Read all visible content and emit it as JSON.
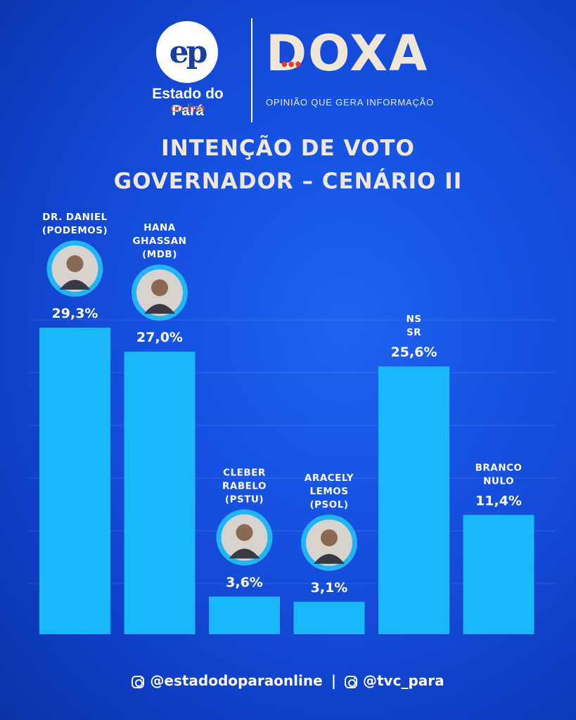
{
  "header": {
    "ep_logo_text": "ep",
    "ep_name": "Estado do Pará",
    "ep_sub": "on-line",
    "doxa_name": "DOXA",
    "doxa_tagline": "OPINIÃO QUE GERA INFORMAÇÃO"
  },
  "title_line1": "INTENÇÃO DE VOTO",
  "title_line2": "GOVERNADOR – CENÁRIO II",
  "colors": {
    "bar": "#18b8fb",
    "title": "#eee8d8",
    "photo_ring": "#1fb5f7"
  },
  "chart_data": {
    "type": "bar",
    "title": "INTENÇÃO DE VOTO GOVERNADOR – CENÁRIO II",
    "categories": [
      [
        "DR. DANIEL",
        "(PODEMOS)"
      ],
      [
        "HANA",
        "GHASSAN",
        "(MDB)"
      ],
      [
        "CLEBER",
        "RABELO",
        "(PSTU)"
      ],
      [
        "ARACELY",
        "LEMOS",
        "(PSOL)"
      ],
      [
        "NS",
        "SR"
      ],
      [
        "BRANCO",
        "NULO"
      ]
    ],
    "values": [
      29.3,
      27.0,
      3.6,
      3.1,
      25.6,
      11.4
    ],
    "value_labels": [
      "29,3%",
      "27,0%",
      "3,6%",
      "3,1%",
      "25,6%",
      "11,4%"
    ],
    "has_photo": [
      true,
      true,
      true,
      true,
      false,
      false
    ],
    "ylim": [
      0,
      30
    ],
    "grid": true,
    "legend": "none"
  },
  "footer": {
    "handle1": "@estadodoparaonline",
    "separator": "|",
    "handle2": "@tvc_para"
  }
}
